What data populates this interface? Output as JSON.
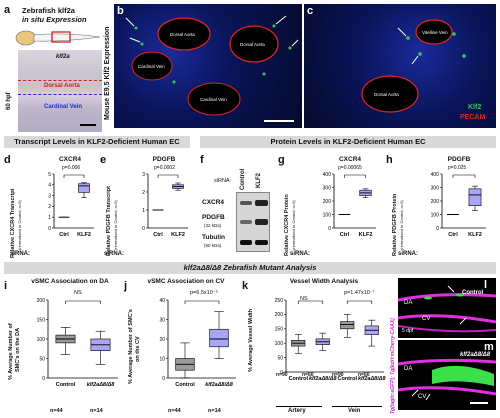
{
  "row1": {
    "a": {
      "letter": "a",
      "title": "Zebrafish klf2a",
      "title2": "in situ Expression",
      "probe": "klf2a",
      "dorsal_aorta": "Dorsal Aorta",
      "cardinal_vein": "Cardinal Vein",
      "stage": "60 hpf"
    },
    "mouse_label": "Mouse E9.5 Klf2 Expression",
    "b": {
      "letter": "b",
      "labels": [
        "Dorsal Aorta",
        "Dorsal Aorta",
        "Cardinal Vein",
        "Cardinal Vein"
      ]
    },
    "c": {
      "letter": "c",
      "labels": [
        "Vitelline Vein",
        "Dorsal Aorta"
      ],
      "legend_klf2": "Klf2",
      "legend_pecam": "PECAM"
    }
  },
  "row2": {
    "header_left": "Transcript Levels in KLF2-Deficient Human EC",
    "header_right": "Protein Levels in KLF2-Deficient Human EC",
    "d": {
      "letter": "d",
      "title": "CXCR4",
      "ylabel": "Relative CXCR4 Transcript",
      "ylabel2": "(normalized to Control; n=3)",
      "pval": "p=0.006",
      "sirna": "siRNA:",
      "cats": [
        "Ctrl",
        "KLF2"
      ]
    },
    "e": {
      "letter": "e",
      "title": "PDGFB",
      "ylabel": "Relative PDGFB Transcript",
      "ylabel2": "(normalized to Control; n=3)",
      "pval": "p=0.0002",
      "sirna": "siRNA:",
      "cats": [
        "Ctrl",
        "KLF2"
      ]
    },
    "f": {
      "letter": "f",
      "sirna": "siRNA:",
      "lanes": [
        "Control",
        "KLF2"
      ],
      "bands": [
        "CXCR4",
        "PDGFB",
        "Tubulin"
      ],
      "band_sizes": [
        "",
        "(32 kDa)",
        "(50 kDa)"
      ]
    },
    "g": {
      "letter": "g",
      "title": "CXCR4",
      "ylabel": "Relative CXCR4 Protein",
      "ylabel2": "(normalized to Control; n=3)",
      "pval": "p=0.00065",
      "sirna": "siRNA:",
      "cats": [
        "Ctrl",
        "KLF2"
      ]
    },
    "h": {
      "letter": "h",
      "title": "PDGFB",
      "ylabel": "Relative PDGFB Protein",
      "ylabel2": "(normalized to Control; n=3)",
      "pval": "p=0.025",
      "sirna": "siRNA:",
      "cats": [
        "Ctrl",
        "KLF2"
      ]
    }
  },
  "row3": {
    "header": "klf2aΔ8/Δ8 Zebrafish Mutant Analysis",
    "i": {
      "letter": "i",
      "title": "vSMC Association on DA",
      "ylabel": "% Average Number of",
      "ylabel2": "SMC's on the DA",
      "sig": "NS",
      "cats": [
        "Control",
        "klf2aΔ8/Δ8"
      ],
      "ns": [
        "n=44",
        "n=14"
      ]
    },
    "j": {
      "letter": "j",
      "title": "vSMC Association on CV",
      "ylabel": "% Average Number of SMC's",
      "ylabel2": "on the CV",
      "sig": "p=6.5x10⁻⁵",
      "cats": [
        "Control",
        "klf2aΔ8/Δ8"
      ],
      "ns": [
        "n=44",
        "n=14"
      ]
    },
    "k": {
      "letter": "k",
      "title": "Vessel Width Analysis",
      "ylabel": "% Average Vessel Width",
      "sig_artery": "NS",
      "sig_vein": "p=1.47x10⁻⁷",
      "cats": [
        "Control",
        "klf2aΔ8/Δ8",
        "Control",
        "klf2aΔ8/Δ8"
      ],
      "ns": [
        "n=90",
        "n=60",
        "n=90",
        "n=60"
      ],
      "groups": [
        "Artery",
        "Vein"
      ]
    },
    "l": {
      "letter": "l",
      "condition": "Control",
      "stage": "5 dpf",
      "da": "DA",
      "cv": "CV"
    },
    "m": {
      "letter": "m",
      "condition": "klf2aΔ8/Δ8",
      "da": "DA",
      "cv": "CV"
    },
    "transgene": "Tg(tagln:eGFP); Tg(kdrl:mCherry-CAAX)"
  },
  "chart_data": [
    {
      "id": "d",
      "type": "box",
      "title": "CXCR4",
      "ylabel": "Relative CXCR4 Transcript",
      "categories": [
        "Ctrl",
        "KLF2"
      ],
      "ylim": [
        0,
        5
      ],
      "yticks": [
        0,
        1,
        2,
        3,
        4,
        5
      ],
      "boxes": [
        {
          "min": 1,
          "q1": 1,
          "median": 1,
          "q3": 1,
          "max": 1
        },
        {
          "min": 2.8,
          "q1": 3.3,
          "median": 3.9,
          "q3": 4.1,
          "max": 4.2
        }
      ]
    },
    {
      "id": "e",
      "type": "box",
      "title": "PDGFB",
      "ylabel": "Relative PDGFB Transcript",
      "categories": [
        "Ctrl",
        "KLF2"
      ],
      "ylim": [
        0,
        3
      ],
      "yticks": [
        0,
        1,
        2,
        3
      ],
      "boxes": [
        {
          "min": 1,
          "q1": 1,
          "median": 1,
          "q3": 1,
          "max": 1
        },
        {
          "min": 2.1,
          "q1": 2.2,
          "median": 2.3,
          "q3": 2.4,
          "max": 2.5
        }
      ]
    },
    {
      "id": "g",
      "type": "box",
      "title": "CXCR4",
      "ylabel": "Relative CXCR4 Protein",
      "categories": [
        "Ctrl",
        "KLF2"
      ],
      "ylim": [
        0,
        400
      ],
      "yticks": [
        0,
        100,
        200,
        300,
        400
      ],
      "boxes": [
        {
          "min": 100,
          "q1": 100,
          "median": 100,
          "q3": 100,
          "max": 100
        },
        {
          "min": 225,
          "q1": 240,
          "median": 260,
          "q3": 280,
          "max": 290
        }
      ]
    },
    {
      "id": "h",
      "type": "box",
      "title": "PDGFB",
      "ylabel": "Relative PDGFB Protein",
      "categories": [
        "Ctrl",
        "KLF2"
      ],
      "ylim": [
        0,
        400
      ],
      "yticks": [
        0,
        100,
        200,
        300,
        400
      ],
      "boxes": [
        {
          "min": 100,
          "q1": 100,
          "median": 100,
          "q3": 100,
          "max": 100
        },
        {
          "min": 130,
          "q1": 165,
          "median": 245,
          "q3": 290,
          "max": 310
        }
      ]
    },
    {
      "id": "i",
      "type": "box",
      "title": "vSMC Association on DA",
      "categories": [
        "Control",
        "klf2aΔ8/Δ8"
      ],
      "ylim": [
        0,
        200
      ],
      "yticks": [
        0,
        50,
        100,
        150,
        200
      ],
      "boxes": [
        {
          "min": 60,
          "q1": 90,
          "median": 100,
          "q3": 110,
          "max": 130
        },
        {
          "min": 35,
          "q1": 70,
          "median": 85,
          "q3": 100,
          "max": 120
        }
      ]
    },
    {
      "id": "j",
      "type": "box",
      "title": "vSMC Association on CV",
      "categories": [
        "Control",
        "klf2aΔ8/Δ8"
      ],
      "ylim": [
        0,
        40
      ],
      "yticks": [
        0,
        10,
        20,
        30,
        40
      ],
      "boxes": [
        {
          "min": 0,
          "q1": 4,
          "median": 7,
          "q3": 10,
          "max": 18
        },
        {
          "min": 10,
          "q1": 16,
          "median": 20,
          "q3": 25,
          "max": 34
        }
      ]
    },
    {
      "id": "k",
      "type": "box",
      "title": "Vessel Width Analysis",
      "categories": [
        "Control",
        "klf2aΔ8/Δ8",
        "Control",
        "klf2aΔ8/Δ8"
      ],
      "ylim": [
        0,
        250
      ],
      "yticks": [
        0,
        50,
        100,
        150,
        200,
        250
      ],
      "boxes": [
        {
          "min": 65,
          "q1": 90,
          "median": 100,
          "q3": 110,
          "max": 130
        },
        {
          "min": 75,
          "q1": 95,
          "median": 105,
          "q3": 115,
          "max": 135
        },
        {
          "min": 120,
          "q1": 150,
          "median": 165,
          "q3": 175,
          "max": 200
        },
        {
          "min": 90,
          "q1": 130,
          "median": 145,
          "q3": 160,
          "max": 180
        }
      ]
    }
  ],
  "colors": {
    "box_fill": "#a9a6f4",
    "box_fill_control": "#9a9a9a",
    "header_bg": "#d9d9d9",
    "pecam": "#e0261f",
    "klf2": "#36c95a"
  }
}
